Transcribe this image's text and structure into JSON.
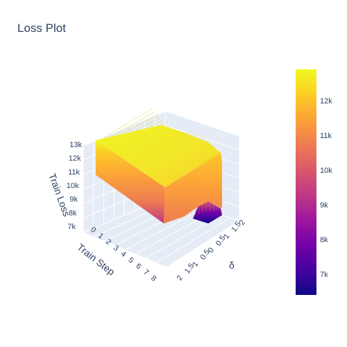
{
  "chart_data": {
    "type": "surface",
    "title": "Loss Plot",
    "x_axis": {
      "label": "Train Step",
      "ticks": [
        "0",
        "1",
        "2",
        "3",
        "4",
        "5",
        "6",
        "7",
        "8"
      ],
      "range": [
        0,
        8
      ]
    },
    "y_axis": {
      "label": "δ",
      "ticks": [
        "2",
        "1.5",
        "1",
        "0.5",
        "0",
        "0.5",
        "1",
        "1.5",
        "2"
      ],
      "range": [
        -2,
        2
      ]
    },
    "z_axis": {
      "label": "Train Loss",
      "ticks": [
        "7k",
        "8k",
        "9k",
        "10k",
        "11k",
        "12k",
        "13k"
      ],
      "range": [
        7000,
        13000
      ]
    },
    "colorbar": {
      "ticks": [
        "7k",
        "8k",
        "9k",
        "10k",
        "11k",
        "12k"
      ],
      "range": [
        6400,
        12900
      ],
      "colorscale": [
        "#0d0887",
        "#46039f",
        "#7201a8",
        "#9c179e",
        "#bd3786",
        "#d8576b",
        "#ed7953",
        "#fb9f3a",
        "#fdca26",
        "#f0f921"
      ]
    },
    "surface": {
      "front_edge_step8": [
        {
          "delta": -2,
          "loss": 7400
        },
        {
          "delta": -1,
          "loss": 7550
        },
        {
          "delta": 0,
          "loss": 7800
        },
        {
          "delta": 0.5,
          "loss": 8200
        },
        {
          "delta": 1,
          "loss": 9400
        }
      ],
      "back_edge_step0": [
        {
          "delta": -2,
          "loss": 12900
        },
        {
          "delta": -1,
          "loss": 12900
        },
        {
          "delta": 0,
          "loss": 12850
        },
        {
          "delta": 1,
          "loss": 12800
        },
        {
          "delta": 2,
          "loss": 12700
        }
      ],
      "min_loss": 6400,
      "max_loss": 12900
    }
  }
}
